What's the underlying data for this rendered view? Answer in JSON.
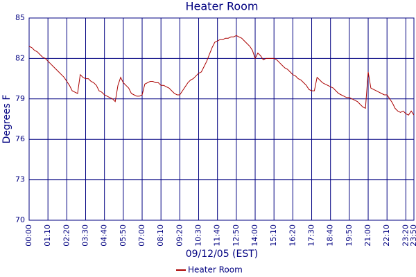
{
  "chart_data": {
    "type": "line",
    "title": "Heater Room",
    "x_label": "09/12/05 (EST)",
    "y_label": "Degrees F",
    "x": [
      0,
      10,
      20,
      30,
      40,
      50,
      60,
      70,
      80,
      90,
      100,
      110,
      120,
      130,
      140,
      150,
      160,
      170,
      180,
      190,
      200,
      210,
      220,
      230,
      240,
      250,
      260,
      270,
      280,
      290,
      300,
      310,
      320,
      330,
      340,
      350,
      360,
      370,
      380,
      390,
      400,
      410,
      420,
      430,
      440,
      450,
      460,
      470,
      480,
      490,
      500,
      510,
      520,
      530,
      540,
      550,
      560,
      570,
      580,
      590,
      600,
      610,
      620,
      630,
      640,
      650,
      660,
      670,
      680,
      690,
      700,
      710,
      720,
      730,
      740,
      750,
      760,
      770,
      780,
      790,
      800,
      810,
      820,
      830,
      840,
      850,
      860,
      870,
      880,
      890,
      900,
      910,
      920,
      930,
      940,
      950,
      960,
      970,
      980,
      990,
      1000,
      1010,
      1020,
      1030,
      1040,
      1050,
      1060,
      1070,
      1080,
      1090,
      1100,
      1110,
      1120,
      1130,
      1140,
      1150,
      1160,
      1170,
      1180,
      1190,
      1200,
      1210,
      1220,
      1230,
      1240,
      1250,
      1260,
      1270,
      1280,
      1290,
      1300,
      1310,
      1320,
      1330,
      1340,
      1350,
      1360,
      1370,
      1380,
      1390,
      1400,
      1410,
      1420,
      1430
    ],
    "series": [
      {
        "name": "Heater Room",
        "color": "#aa0000",
        "values": [
          82.9,
          82.8,
          82.6,
          82.5,
          82.3,
          82.1,
          82.0,
          81.8,
          81.6,
          81.4,
          81.2,
          81.0,
          80.8,
          80.6,
          80.3,
          80.0,
          79.6,
          79.5,
          79.4,
          80.8,
          80.6,
          80.5,
          80.5,
          80.3,
          80.2,
          80.0,
          79.6,
          79.5,
          79.3,
          79.2,
          79.1,
          79.0,
          78.8,
          80.0,
          80.6,
          80.2,
          80.0,
          79.8,
          79.4,
          79.3,
          79.2,
          79.2,
          79.3,
          80.1,
          80.2,
          80.3,
          80.3,
          80.2,
          80.2,
          80.0,
          80.0,
          79.9,
          79.8,
          79.6,
          79.4,
          79.3,
          79.3,
          79.6,
          79.9,
          80.2,
          80.4,
          80.5,
          80.7,
          80.9,
          81.0,
          81.4,
          81.8,
          82.3,
          82.8,
          83.2,
          83.3,
          83.4,
          83.4,
          83.5,
          83.5,
          83.6,
          83.6,
          83.7,
          83.6,
          83.5,
          83.3,
          83.1,
          82.9,
          82.6,
          82.0,
          82.4,
          82.2,
          81.9,
          82.0,
          82.0,
          82.0,
          82.0,
          81.9,
          81.7,
          81.5,
          81.3,
          81.2,
          81.0,
          80.8,
          80.7,
          80.5,
          80.4,
          80.2,
          80.0,
          79.7,
          79.6,
          79.6,
          80.6,
          80.4,
          80.2,
          80.1,
          80.0,
          79.9,
          79.8,
          79.6,
          79.4,
          79.3,
          79.2,
          79.1,
          79.1,
          79.0,
          78.9,
          78.8,
          78.6,
          78.4,
          78.3,
          81.0,
          79.8,
          79.7,
          79.6,
          79.5,
          79.4,
          79.3,
          79.3,
          79.0,
          78.7,
          78.3,
          78.1,
          78.0,
          78.1,
          77.9,
          77.8,
          78.1,
          77.8
        ]
      }
    ],
    "xlim": [
      0,
      1430
    ],
    "xticks": [
      {
        "value": 0,
        "label": "00:00"
      },
      {
        "value": 70,
        "label": "01:10"
      },
      {
        "value": 140,
        "label": "02:20"
      },
      {
        "value": 210,
        "label": "03:30"
      },
      {
        "value": 280,
        "label": "04:40"
      },
      {
        "value": 350,
        "label": "05:50"
      },
      {
        "value": 420,
        "label": "07:00"
      },
      {
        "value": 490,
        "label": "08:10"
      },
      {
        "value": 560,
        "label": "09:20"
      },
      {
        "value": 630,
        "label": "10:30"
      },
      {
        "value": 700,
        "label": "11:40"
      },
      {
        "value": 770,
        "label": "12:50"
      },
      {
        "value": 840,
        "label": "14:00"
      },
      {
        "value": 910,
        "label": "15:10"
      },
      {
        "value": 980,
        "label": "16:20"
      },
      {
        "value": 1050,
        "label": "17:30"
      },
      {
        "value": 1120,
        "label": "18:40"
      },
      {
        "value": 1190,
        "label": "19:50"
      },
      {
        "value": 1260,
        "label": "21:00"
      },
      {
        "value": 1330,
        "label": "22:10"
      },
      {
        "value": 1400,
        "label": "23:20"
      },
      {
        "value": 1430,
        "label": "23:50"
      }
    ],
    "ylim": [
      70,
      85
    ],
    "yticks": [
      70,
      73,
      76,
      79,
      82,
      85
    ],
    "grid": true,
    "grid_color": "#000080",
    "text_color": "#000080",
    "legend": "bottom"
  }
}
